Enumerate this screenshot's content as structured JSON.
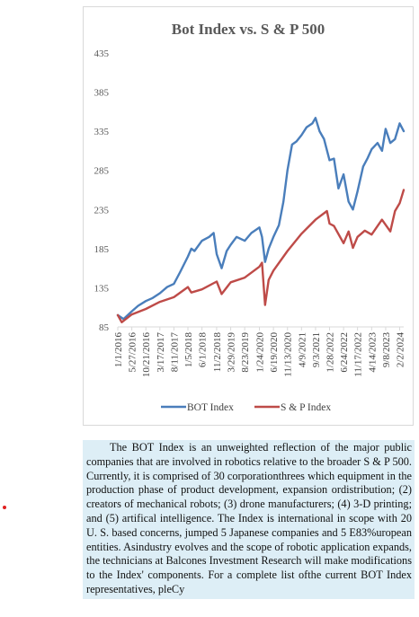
{
  "chart_data": {
    "type": "line",
    "title": "Bot Index vs. S & P 500",
    "xlabel": "",
    "ylabel": "",
    "ylim": [
      85,
      435
    ],
    "yticks": [
      85,
      135,
      185,
      235,
      285,
      335,
      385,
      435
    ],
    "x_tick_labels": [
      "1/1/2016",
      "5/27/2016",
      "10/21/2016",
      "3/17/2017",
      "8/11/2017",
      "1/5/2018",
      "6/1/2018",
      "11/2/2018",
      "3/29/2019",
      "8/23/2019",
      "1/24/2020",
      "6/19/2020",
      "11/13/2020",
      "4/9/2021",
      "9/3/2021",
      "1/28/2022",
      "6/24/2022",
      "11/17/2022",
      "4/14/2023",
      "9/8/2023",
      "2/2/2024"
    ],
    "grid": false,
    "legend_position": "bottom",
    "series": [
      {
        "name": "BOT Index",
        "color": "#4a7ebb",
        "x": [
          "1/1/2016",
          "3/1/2016",
          "5/27/2016",
          "8/1/2016",
          "10/21/2016",
          "1/1/2017",
          "3/17/2017",
          "6/1/2017",
          "8/11/2017",
          "10/15/2017",
          "1/5/2018",
          "2/10/2018",
          "3/15/2018",
          "6/1/2018",
          "8/15/2018",
          "10/1/2018",
          "11/2/2018",
          "12/24/2018",
          "2/15/2019",
          "3/29/2019",
          "5/30/2019",
          "8/23/2019",
          "11/1/2019",
          "1/24/2020",
          "2/20/2020",
          "3/23/2020",
          "4/30/2020",
          "6/19/2020",
          "8/15/2020",
          "10/1/2020",
          "11/13/2020",
          "12/31/2020",
          "2/15/2021",
          "4/9/2021",
          "6/1/2021",
          "8/1/2021",
          "9/3/2021",
          "10/15/2021",
          "12/1/2021",
          "1/28/2022",
          "3/15/2022",
          "5/1/2022",
          "6/24/2022",
          "8/15/2022",
          "9/30/2022",
          "11/17/2022",
          "1/15/2023",
          "2/28/2023",
          "4/14/2023",
          "6/15/2023",
          "8/1/2023",
          "9/8/2023",
          "10/27/2023",
          "12/15/2023",
          "2/2/2024",
          "3/15/2024"
        ],
        "values": [
          100,
          95,
          105,
          112,
          118,
          122,
          128,
          136,
          140,
          155,
          175,
          185,
          182,
          195,
          200,
          205,
          178,
          160,
          182,
          190,
          200,
          195,
          205,
          212,
          200,
          168,
          185,
          200,
          215,
          245,
          285,
          318,
          322,
          330,
          340,
          345,
          352,
          335,
          325,
          298,
          300,
          262,
          280,
          245,
          235,
          258,
          290,
          300,
          312,
          320,
          310,
          338,
          320,
          325,
          345,
          335
        ]
      },
      {
        "name": "S & P Index",
        "color": "#be4b48",
        "x": [
          "1/1/2016",
          "2/11/2016",
          "5/27/2016",
          "10/21/2016",
          "3/17/2017",
          "8/11/2017",
          "1/5/2018",
          "2/10/2018",
          "6/1/2018",
          "11/2/2018",
          "12/24/2018",
          "3/29/2019",
          "8/23/2019",
          "1/24/2020",
          "2/20/2020",
          "3/23/2020",
          "4/30/2020",
          "6/19/2020",
          "11/13/2020",
          "4/9/2021",
          "9/3/2021",
          "12/31/2021",
          "1/28/2022",
          "3/15/2022",
          "6/24/2022",
          "8/15/2022",
          "9/30/2022",
          "11/17/2022",
          "2/1/2023",
          "4/14/2023",
          "7/31/2023",
          "10/27/2023",
          "12/15/2023",
          "2/2/2024",
          "3/15/2024"
        ],
        "values": [
          100,
          91,
          101,
          108,
          117,
          123,
          136,
          129,
          133,
          143,
          127,
          142,
          148,
          162,
          167,
          113,
          145,
          157,
          182,
          204,
          222,
          233,
          217,
          214,
          192,
          207,
          186,
          200,
          208,
          203,
          222,
          207,
          233,
          243,
          260
        ]
      }
    ]
  },
  "description": "The BOT Index is an unweighted reflection of the major public companies that are involved in robotics relative to the broader S & P 500. Currently, it is comprised of 30 corporationthrees which equipment in the production phase of product development, expansion ordistribution; (2) creators of mechanical robots; (3) drone manufacturers; (4) 3-D printing; and (5) artifical intelligence. The Index is international in scope with 20 U. S. based concerns, jumped 5 Japanese companies and 5 E83%uropean entities. Asindustry evolves and the scope of robotic application expands, the technicians at Balcones Investment Research will make modifications to the Index' components. For a complete list ofthe current BOT Index representatives, pleCy"
}
